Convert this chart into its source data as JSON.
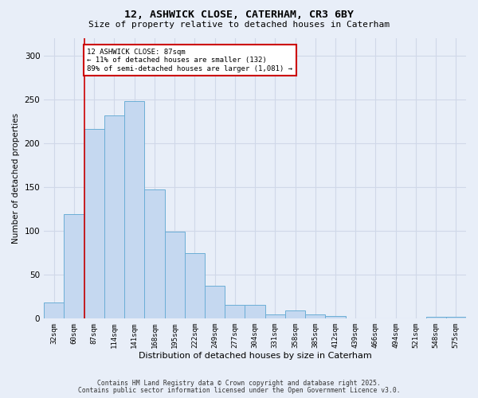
{
  "title": "12, ASHWICK CLOSE, CATERHAM, CR3 6BY",
  "subtitle": "Size of property relative to detached houses in Caterham",
  "xlabel": "Distribution of detached houses by size in Caterham",
  "ylabel": "Number of detached properties",
  "footer_line1": "Contains HM Land Registry data © Crown copyright and database right 2025.",
  "footer_line2": "Contains public sector information licensed under the Open Government Licence v3.0.",
  "categories": [
    "32sqm",
    "60sqm",
    "87sqm",
    "114sqm",
    "141sqm",
    "168sqm",
    "195sqm",
    "222sqm",
    "249sqm",
    "277sqm",
    "304sqm",
    "331sqm",
    "358sqm",
    "385sqm",
    "412sqm",
    "439sqm",
    "466sqm",
    "494sqm",
    "521sqm",
    "548sqm",
    "575sqm"
  ],
  "values": [
    18,
    119,
    216,
    231,
    248,
    147,
    99,
    74,
    37,
    15,
    15,
    4,
    9,
    4,
    3,
    0,
    0,
    0,
    0,
    2,
    2
  ],
  "bar_color": "#c5d8f0",
  "bar_edge_color": "#6baed6",
  "ylim": [
    0,
    320
  ],
  "yticks": [
    0,
    50,
    100,
    150,
    200,
    250,
    300
  ],
  "annotation_text": "12 ASHWICK CLOSE: 87sqm\n← 11% of detached houses are smaller (132)\n89% of semi-detached houses are larger (1,081) →",
  "vline_x_index": 2,
  "annotation_box_color": "#ffffff",
  "annotation_box_edge": "#cc0000",
  "vline_color": "#cc0000",
  "grid_color": "#d0d8e8",
  "background_color": "#e8eef8"
}
